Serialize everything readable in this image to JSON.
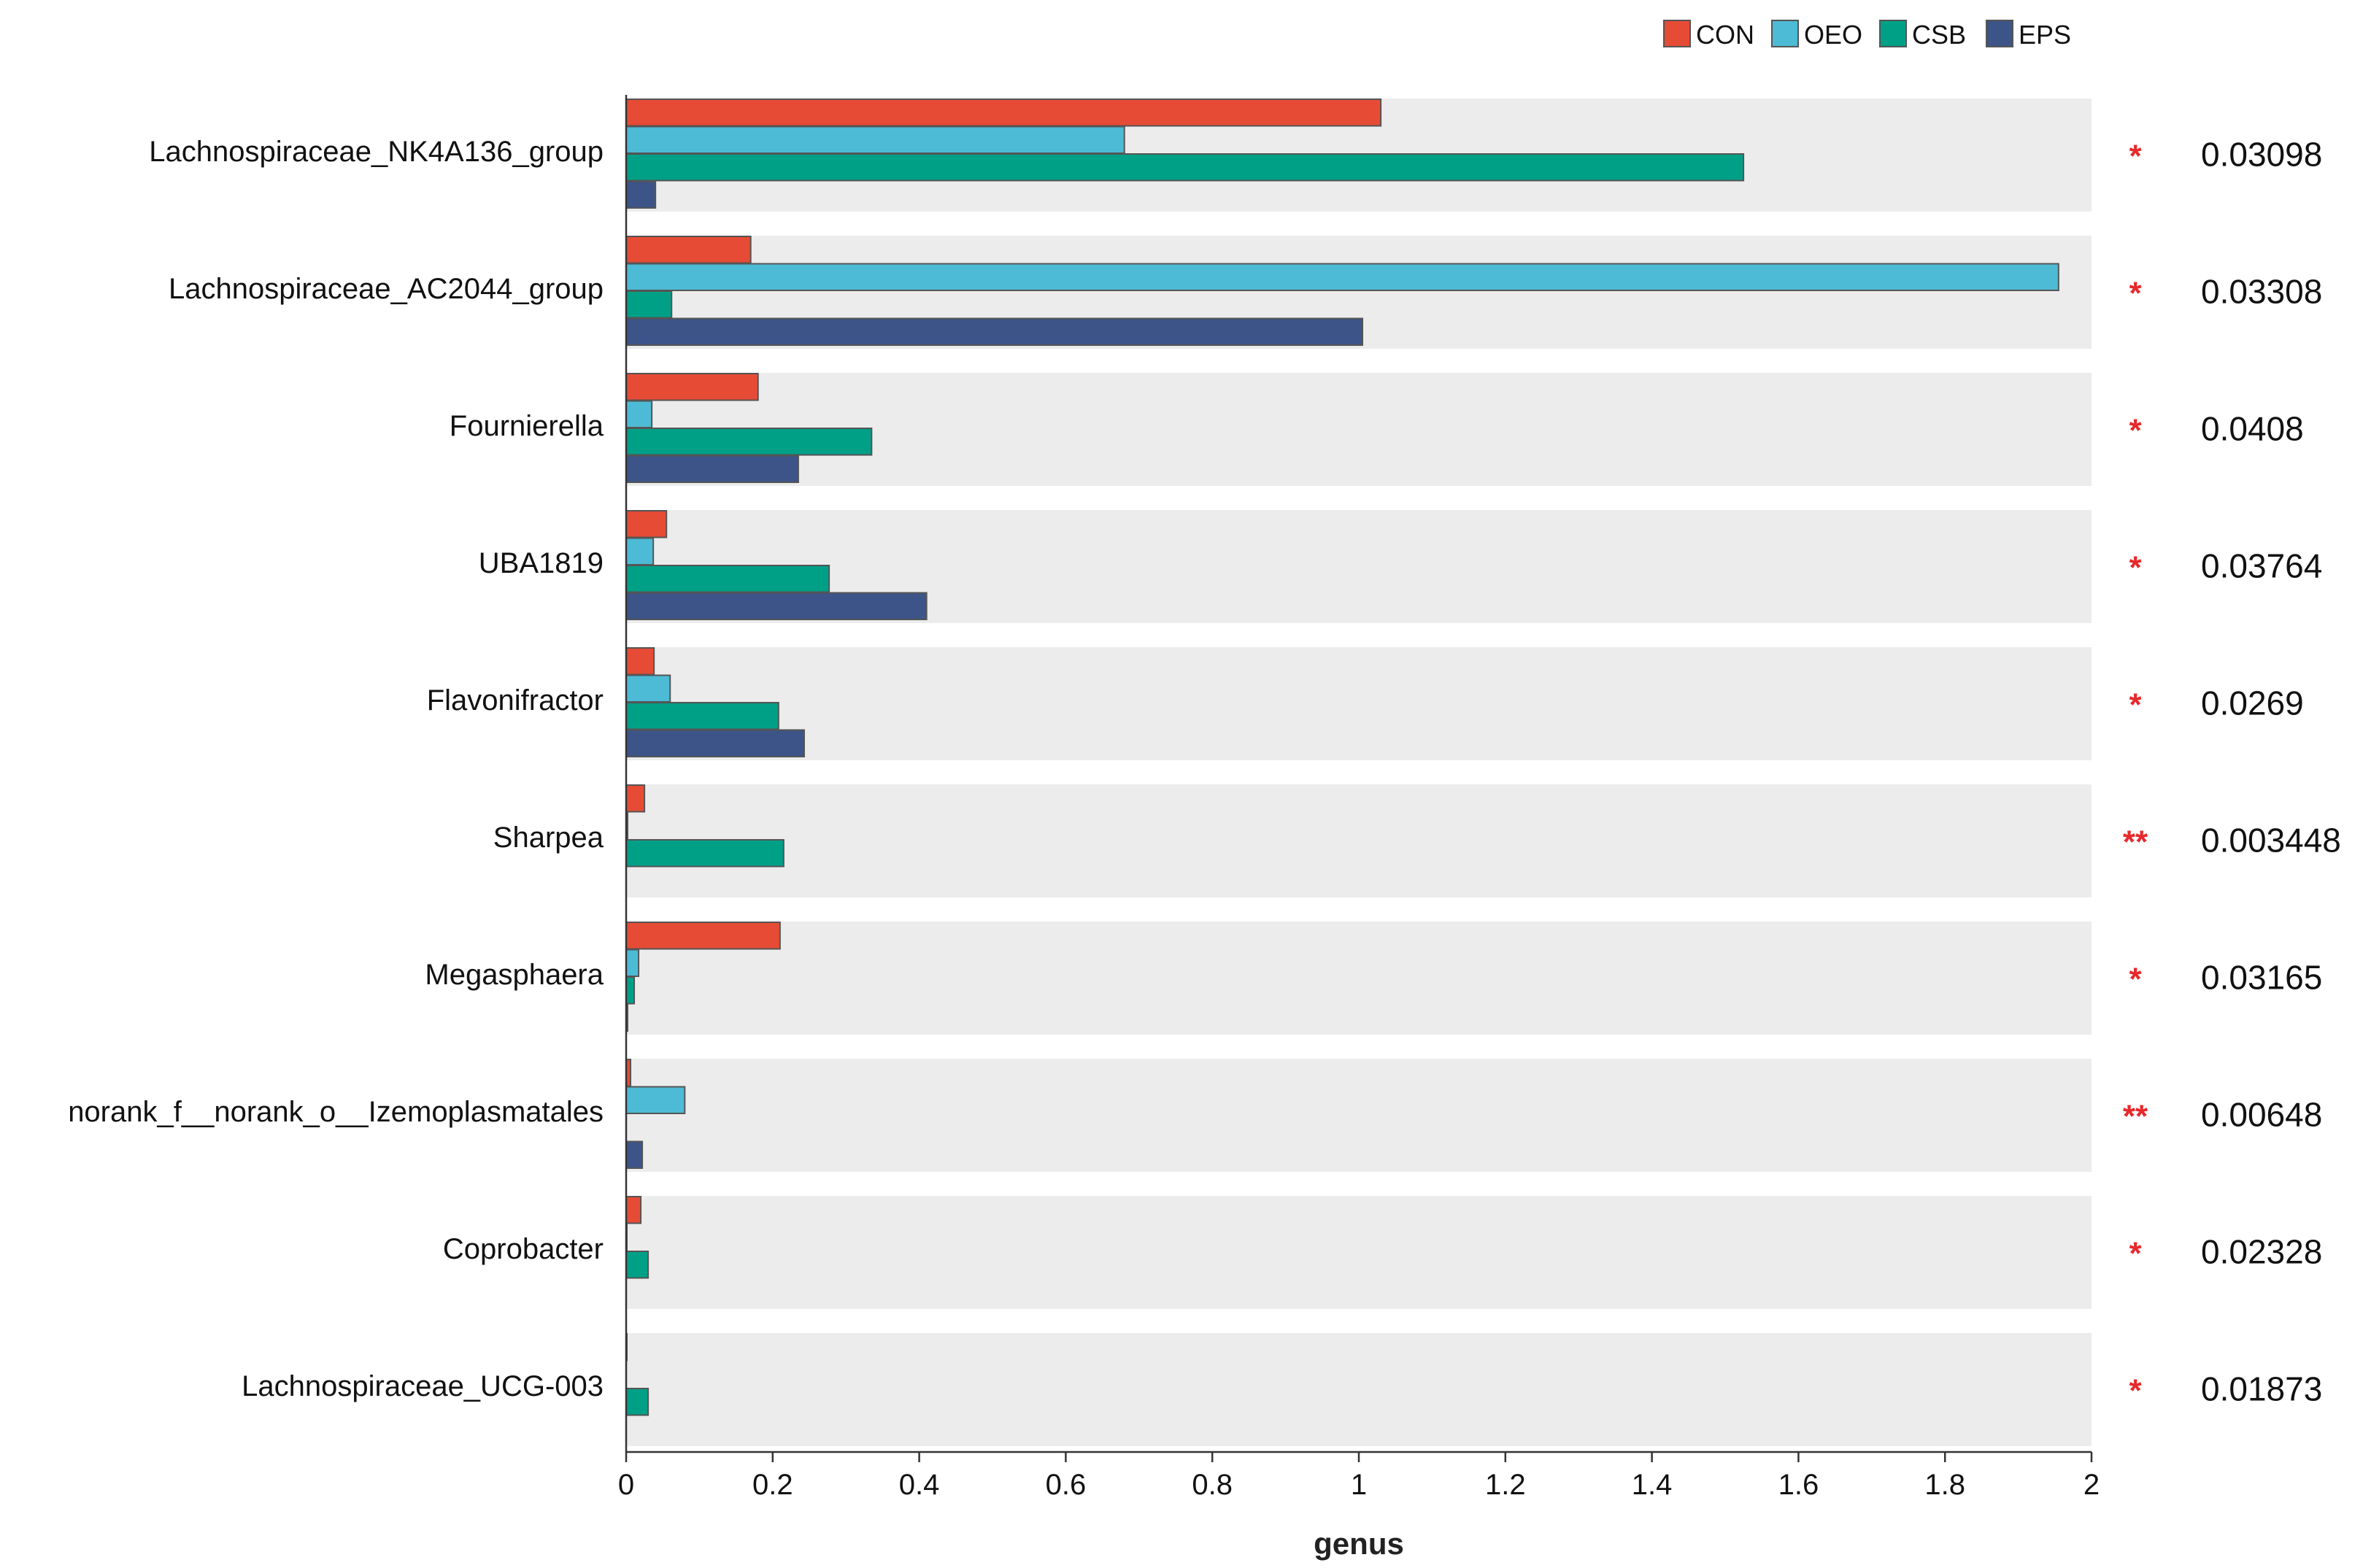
{
  "chart_data": {
    "type": "bar",
    "orientation": "horizontal",
    "title": "",
    "xlabel": "genus",
    "ylabel": "",
    "xlim": [
      0,
      2
    ],
    "x_ticks": [
      "0",
      "0.2",
      "0.4",
      "0.6",
      "0.8",
      "1",
      "1.2",
      "1.4",
      "1.6",
      "1.8",
      "2"
    ],
    "tick_values": [
      0,
      0.2,
      0.4,
      0.6,
      0.8,
      1,
      1.2,
      1.4,
      1.6,
      1.8,
      2
    ],
    "legend_position": "top-right",
    "colors": {
      "CON": "#E64B35",
      "OEO": "#4DBBD5",
      "CSB": "#00A087",
      "EPS": "#3C5488",
      "band": "#ECECEC",
      "star": "#E8282B"
    },
    "categories": [
      "Lachnospiraceae_NK4A136_group",
      "Lachnospiraceae_AC2044_group",
      "Fournierella",
      "UBA1819",
      "Flavonifractor",
      "Sharpea",
      "Megasphaera",
      "norank_f__norank_o__Izemoplasmatales",
      "Coprobacter",
      "Lachnospiraceae_UCG-003"
    ],
    "series": [
      {
        "name": "CON",
        "values": [
          1.03,
          0.17,
          0.18,
          0.055,
          0.038,
          0.025,
          0.21,
          0.006,
          0.02,
          0.001
        ]
      },
      {
        "name": "OEO",
        "values": [
          0.68,
          1.955,
          0.035,
          0.037,
          0.06,
          0.002,
          0.017,
          0.08,
          0.001,
          0.0
        ]
      },
      {
        "name": "CSB",
        "values": [
          1.525,
          0.062,
          0.335,
          0.277,
          0.208,
          0.215,
          0.011,
          0.0,
          0.03,
          0.03
        ]
      },
      {
        "name": "EPS",
        "values": [
          0.04,
          1.005,
          0.235,
          0.41,
          0.243,
          0.0,
          0.002,
          0.022,
          0.0,
          0.0
        ]
      }
    ],
    "significance": [
      "*",
      "*",
      "*",
      "*",
      "*",
      "**",
      "*",
      "**",
      "*",
      "*"
    ],
    "p_values": [
      "0.03098",
      "0.03308",
      "0.0408",
      "0.03764",
      "0.0269",
      "0.003448",
      "0.03165",
      "0.00648",
      "0.02328",
      "0.01873"
    ]
  }
}
